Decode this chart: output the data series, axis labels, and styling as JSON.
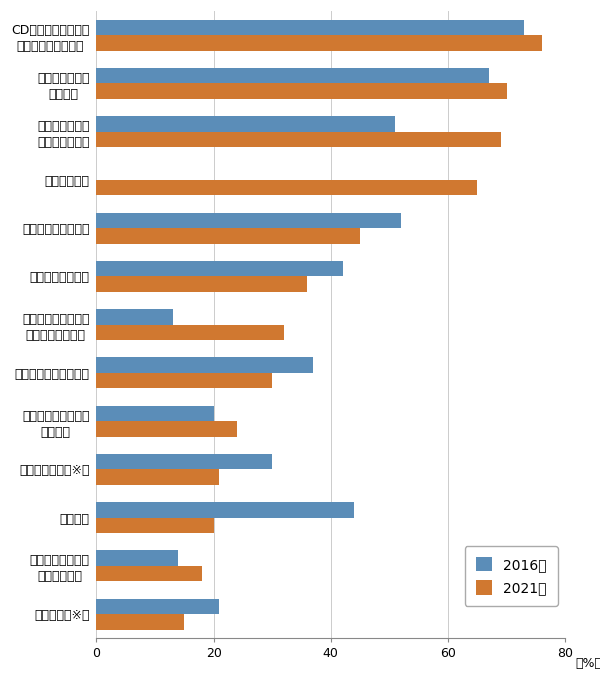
{
  "categories": [
    "CD・スマートフォン\nなどによる音楽鑑賞",
    "映画館以外での\n映画鑑賞",
    "テレビゲーム・\nパソコンゲーム",
    "マンガを読む",
    "映画館での映画鑑賞",
    "趣味としての読書",
    "遊園地、動植物園、\n水族館などの見物",
    "写真の撮影・プリント",
    "趣味としての料理・\n菓子作り",
    "スポーツ観覧（※）",
    "カラオケ",
    "園芸・庭いじり・\nガーデニング",
    "美術鑑賞（※）"
  ],
  "values_2016": [
    73,
    67,
    51,
    0,
    52,
    42,
    13,
    37,
    20,
    30,
    44,
    14,
    21
  ],
  "values_2021": [
    76,
    70,
    69,
    65,
    45,
    36,
    32,
    30,
    24,
    21,
    20,
    18,
    15
  ],
  "color_2016": "#5b8db8",
  "color_2021": "#d07830",
  "legend_2016": "2016年",
  "legend_2021": "2021年",
  "xlabel": "（%）",
  "xlim": [
    0,
    80
  ],
  "xticks": [
    0,
    20,
    40,
    60,
    80
  ],
  "bar_height": 0.32,
  "figsize": [
    6.0,
    6.78
  ],
  "dpi": 100,
  "bg_color": "#ffffff",
  "label_fontsize": 9,
  "tick_fontsize": 9,
  "legend_fontsize": 10
}
